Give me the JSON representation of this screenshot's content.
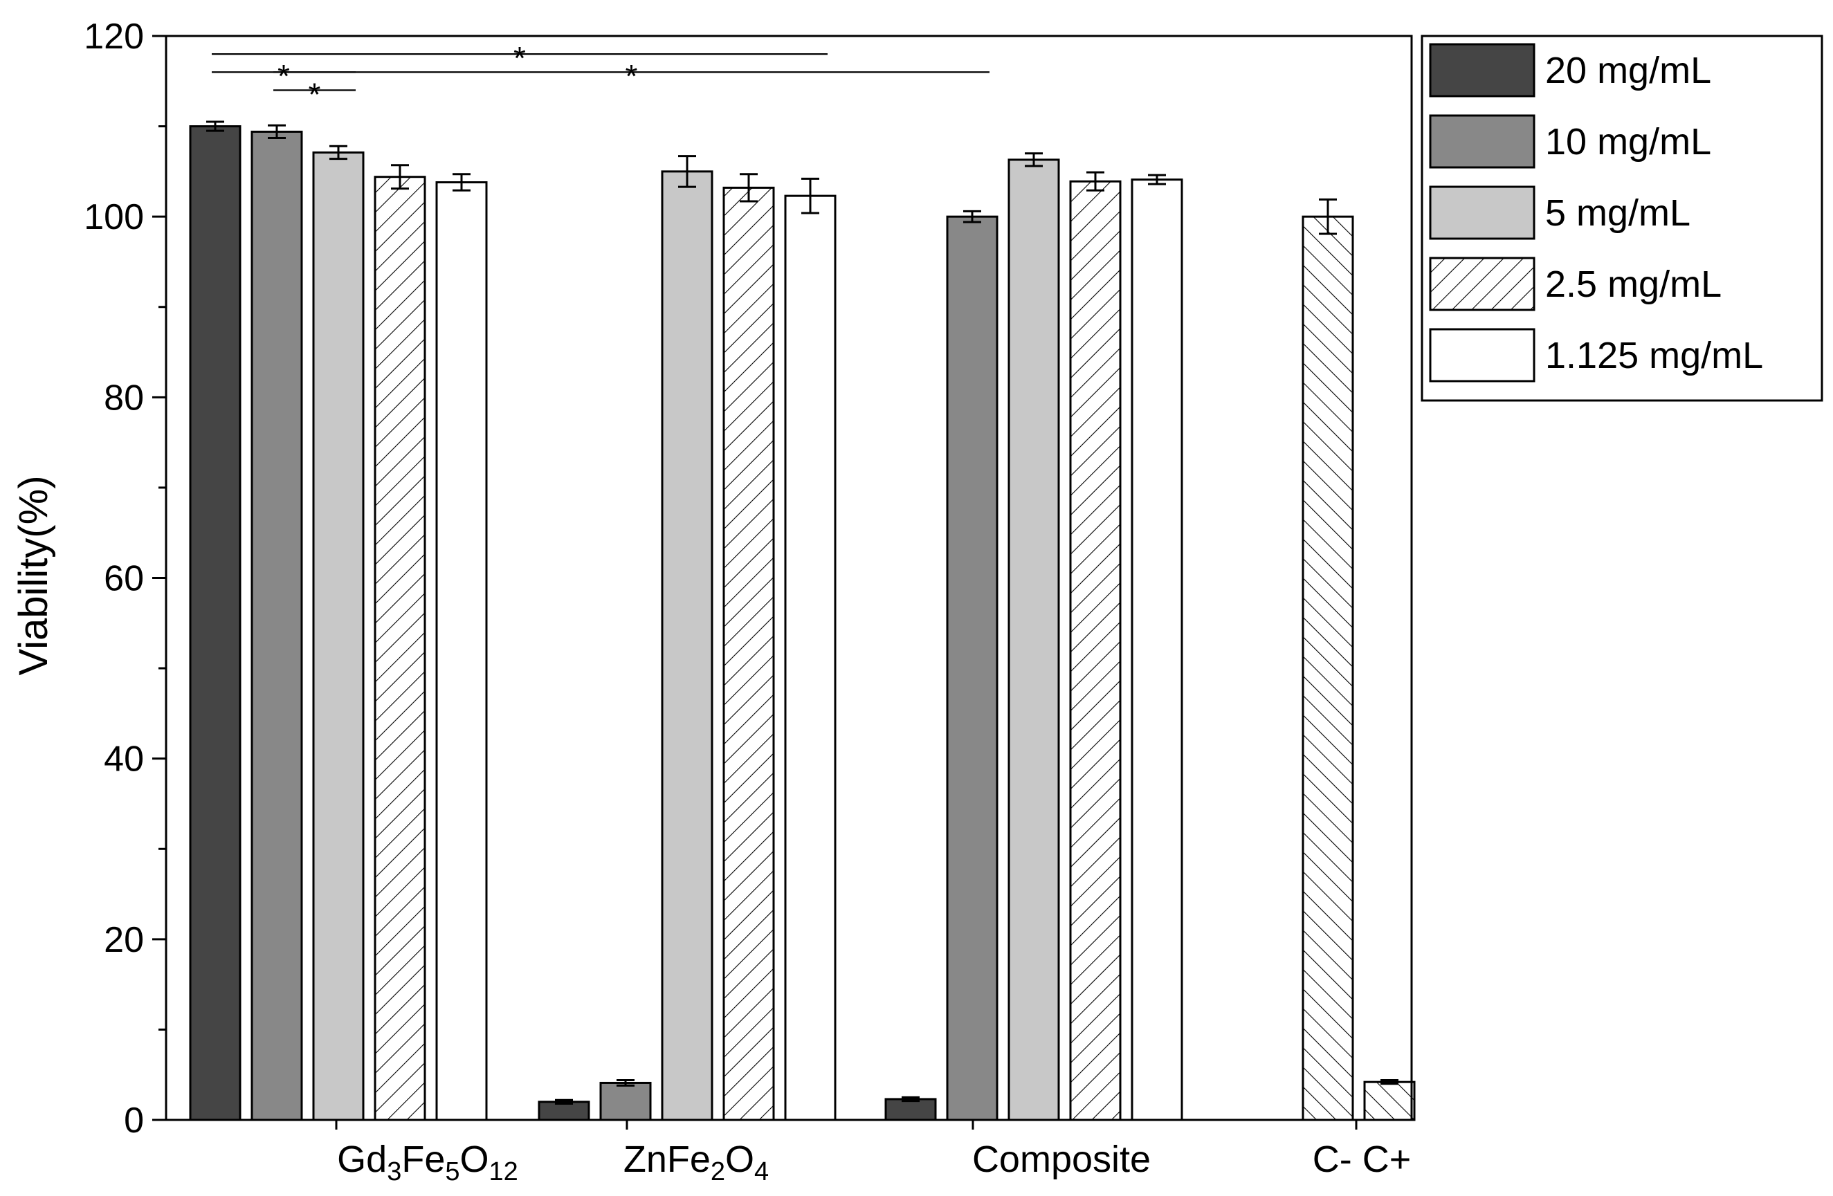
{
  "chart_data": {
    "type": "bar",
    "title": "",
    "xlabel": "",
    "ylabel": "Viability(%)",
    "ylim": [
      0,
      120
    ],
    "yticks": [
      0,
      20,
      40,
      60,
      80,
      100,
      120
    ],
    "grid": false,
    "legend_position": "right-top",
    "series": [
      {
        "name": "20 mg/mL",
        "color": "#454545",
        "pattern": "solid"
      },
      {
        "name": "10 mg/mL",
        "color": "#888888",
        "pattern": "solid"
      },
      {
        "name": "5 mg/mL",
        "color": "#c8c8c8",
        "pattern": "solid"
      },
      {
        "name": "2.5 mg/mL",
        "color": "#ffffff",
        "pattern": "hatch-forward"
      },
      {
        "name": "1.125 mg/mL",
        "color": "#ffffff",
        "pattern": "solid"
      }
    ],
    "groups": [
      {
        "label": {
          "base": "Gd",
          "sub1": "3",
          "mid": "Fe",
          "sub2": "5",
          "end": "O",
          "sub3": "12"
        },
        "bars": [
          {
            "series": 0,
            "value": 110.0,
            "error": 0.5
          },
          {
            "series": 1,
            "value": 109.4,
            "error": 0.7
          },
          {
            "series": 2,
            "value": 107.1,
            "error": 0.7
          },
          {
            "series": 3,
            "value": 104.4,
            "error": 1.3
          },
          {
            "series": 4,
            "value": 103.8,
            "error": 0.9
          }
        ]
      },
      {
        "label": {
          "base": "ZnFe",
          "sub1": "2",
          "mid": "O",
          "sub2": "4",
          "end": "",
          "sub3": ""
        },
        "bars": [
          {
            "series": 0,
            "value": 2.0,
            "error": 0.2
          },
          {
            "series": 1,
            "value": 4.1,
            "error": 0.3
          },
          {
            "series": 2,
            "value": 105.0,
            "error": 1.7
          },
          {
            "series": 3,
            "value": 103.2,
            "error": 1.5
          },
          {
            "series": 4,
            "value": 102.3,
            "error": 1.9
          }
        ]
      },
      {
        "label": {
          "base": "Composite",
          "sub1": "",
          "mid": "",
          "sub2": "",
          "end": "",
          "sub3": ""
        },
        "bars": [
          {
            "series": 0,
            "value": 2.3,
            "error": 0.2
          },
          {
            "series": 1,
            "value": 100.0,
            "error": 0.6
          },
          {
            "series": 2,
            "value": 106.3,
            "error": 0.7
          },
          {
            "series": 3,
            "value": 103.9,
            "error": 1.0
          },
          {
            "series": 4,
            "value": 104.1,
            "error": 0.5
          }
        ]
      },
      {
        "label": {
          "base": "C-  C+",
          "sub1": "",
          "mid": "",
          "sub2": "",
          "end": "",
          "sub3": ""
        },
        "bars": [
          {
            "series": "control-negative",
            "value": 100.0,
            "error": 1.9,
            "pattern": "hatch-back"
          },
          {
            "series": "control-positive",
            "value": 4.2,
            "error": 0.2,
            "pattern": "hatch-back"
          }
        ]
      }
    ],
    "significance": [
      {
        "from": "Gd3Fe5O12 20 mg/mL",
        "to": "Gd3Fe5O12 5 mg/mL",
        "y": 116.0,
        "label": "*"
      },
      {
        "from": "Gd3Fe5O12 20 mg/mL",
        "to": "ZnFe2O4 1.125 mg/mL",
        "y": 118.0,
        "label": "*"
      },
      {
        "from": "Gd3Fe5O12 10 mg/mL",
        "to": "Gd3Fe5O12 5 mg/mL",
        "y": 114.0,
        "label": "*"
      },
      {
        "from": "Gd3Fe5O12 10 mg/mL",
        "to": "Composite 10 mg/mL",
        "y": 116.0,
        "label": "*"
      }
    ]
  }
}
